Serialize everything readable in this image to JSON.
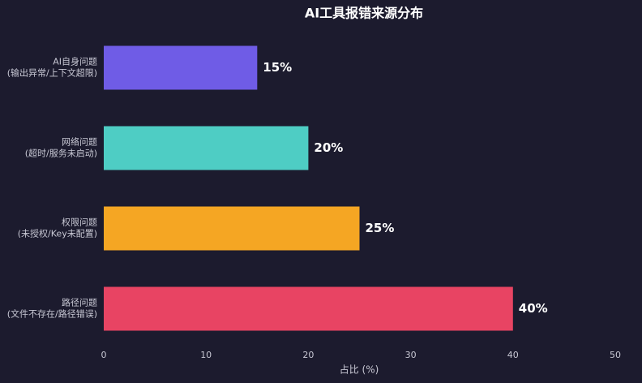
{
  "chart_data": {
    "type": "barh",
    "title": "AI工具报错来源分布",
    "categories": [
      "AI自身问题\n(输出异常/上下文超限)",
      "网络问题\n(超时/服务未启动)",
      "权限问题\n(未授权/Key未配置)",
      "路径问题\n(文件不存在/路径错误)"
    ],
    "values": [
      15,
      20,
      25,
      40
    ],
    "value_labels": [
      "15%",
      "20%",
      "25%",
      "40%"
    ],
    "colors": [
      "#6f5ce6",
      "#4ecdc4",
      "#f5a623",
      "#e84463"
    ],
    "xlabel": "占比 (%)",
    "xlim": [
      0,
      50
    ],
    "xticks": [
      0,
      10,
      20,
      30,
      40,
      50
    ],
    "grid": false
  }
}
